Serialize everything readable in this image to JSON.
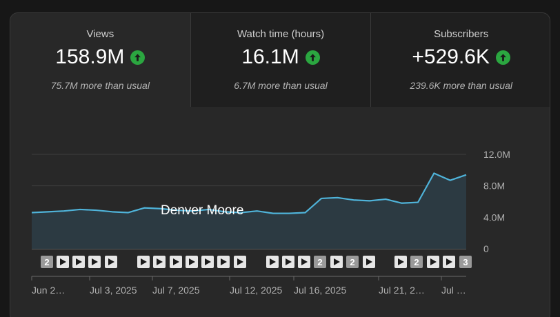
{
  "metrics": [
    {
      "label": "Views",
      "value": "158.9M",
      "sub": "75.7M more than usual",
      "trend_icon": "arrow-up-icon"
    },
    {
      "label": "Watch time (hours)",
      "value": "16.1M",
      "sub": "6.7M more than usual",
      "trend_icon": "arrow-up-icon"
    },
    {
      "label": "Subscribers",
      "value": "+529.6K",
      "sub": "239.6K more than usual",
      "trend_icon": "arrow-up-icon"
    }
  ],
  "colors": {
    "line": "#4fb3d9",
    "trend_up": "#2ba640"
  },
  "chart_data": {
    "type": "area",
    "series_label": "Denver Moore",
    "y_ticks": [
      "12.0M",
      "8.0M",
      "4.0M",
      "0"
    ],
    "ylim": [
      0,
      12000000
    ],
    "values": [
      4.6,
      4.7,
      4.8,
      5.0,
      4.9,
      4.7,
      4.6,
      5.2,
      5.1,
      4.9,
      4.8,
      5.0,
      4.7,
      4.6,
      4.8,
      4.5,
      4.5,
      4.6,
      6.4,
      6.5,
      6.2,
      6.1,
      6.3,
      5.8,
      5.9,
      9.6,
      8.7,
      9.4
    ],
    "x_ticks": [
      "Jun 2…",
      "Jul 3, 2025",
      "Jul 7, 2025",
      "Jul 12, 2025",
      "Jul 16, 2025",
      "Jul 21, 2…",
      "Jul …"
    ],
    "markers": [
      {
        "type": "badge",
        "text": "2"
      },
      {
        "type": "play"
      },
      {
        "type": "play"
      },
      {
        "type": "play"
      },
      {
        "type": "play"
      },
      {
        "type": "play"
      },
      {
        "type": "play"
      },
      {
        "type": "play"
      },
      {
        "type": "play"
      },
      {
        "type": "play"
      },
      {
        "type": "play"
      },
      {
        "type": "play"
      },
      {
        "type": "play"
      },
      {
        "type": "play"
      },
      {
        "type": "play"
      },
      {
        "type": "badge",
        "text": "2"
      },
      {
        "type": "play"
      },
      {
        "type": "badge",
        "text": "2"
      },
      {
        "type": "play"
      },
      {
        "type": "play"
      },
      {
        "type": "badge",
        "text": "2"
      },
      {
        "type": "play"
      },
      {
        "type": "play"
      },
      {
        "type": "badge",
        "text": "3"
      }
    ]
  }
}
